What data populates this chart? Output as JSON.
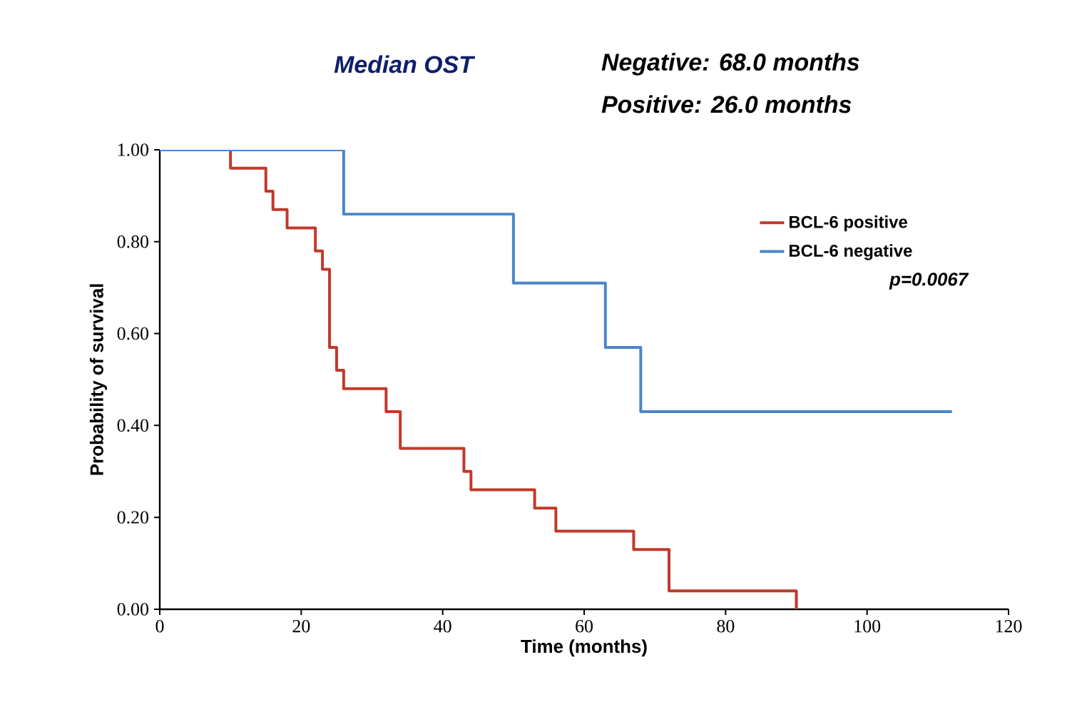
{
  "chart_data": {
    "type": "step",
    "title": "Median OST",
    "annotations": [
      "Negative: 68.0 months",
      "Positive:  26.0 months",
      "*p*=0.0067"
    ],
    "xlabel": "Time  (months)",
    "ylabel": "Probability of  survival",
    "series": [
      {
        "name": "BCL-6 positive",
        "color": "#c0392b",
        "x": [
          0,
          10,
          15,
          16,
          18,
          22,
          23,
          24,
          25,
          26,
          32,
          34,
          43,
          44,
          53,
          56,
          67,
          72,
          90
        ],
        "values": [
          1,
          0.96,
          0.91,
          0.87,
          0.83,
          0.78,
          0.74,
          0.57,
          0.52,
          0.48,
          0.43,
          0.35,
          0.3,
          0.26,
          0.22,
          0.17,
          0.13,
          0.04,
          0
        ]
      },
      {
        "name": "BCL-6 negative",
        "color": "#4a86c8",
        "x": [
          0,
          26,
          50,
          63,
          68,
          112
        ],
        "values": [
          1,
          0.86,
          0.71,
          0.57,
          0.43,
          0.43
        ]
      }
    ],
    "xlim": [
      0,
      120
    ],
    "xticks": [
      0,
      20,
      40,
      60,
      80,
      100,
      120
    ],
    "ylim": [
      0,
      1
    ],
    "yticks": [
      {
        "value": 0,
        "label": "0.00"
      },
      {
        "value": 0.2,
        "label": "0.20"
      },
      {
        "value": 0.4,
        "label": "0.40"
      },
      {
        "value": 0.6,
        "label": "0.60"
      },
      {
        "value": 0.8,
        "label": "0.80"
      },
      {
        "value": 1,
        "label": "1.00"
      }
    ],
    "legend": "top right",
    "grid": false
  }
}
